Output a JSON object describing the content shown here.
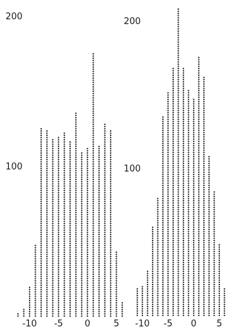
{
  "chart_data": [
    {
      "type": "bar",
      "title": "",
      "xlabel": "",
      "ylabel": "",
      "ylim": [
        0,
        200
      ],
      "y_ticks": [
        {
          "value": 100,
          "label": "100"
        },
        {
          "value": 200,
          "label": "200"
        }
      ],
      "xlim": [
        -12.5,
        6.5
      ],
      "x_ticks": [
        {
          "value": -10,
          "label": "-10"
        },
        {
          "value": -5,
          "label": "-5"
        },
        {
          "value": 0,
          "label": "0"
        },
        {
          "value": 5,
          "label": "5"
        }
      ],
      "x": [
        -12,
        -11,
        -10,
        -9,
        -8,
        -7,
        -6,
        -5,
        -4,
        -3,
        -2,
        -1,
        0,
        1,
        2,
        3,
        4,
        5,
        6
      ],
      "values": [
        2,
        5,
        20,
        48,
        126,
        124,
        118,
        119,
        122,
        116,
        136,
        109,
        113,
        175,
        114,
        128,
        124,
        44,
        10
      ],
      "grid": false,
      "legend": false
    },
    {
      "type": "bar",
      "title": "",
      "xlabel": "",
      "ylabel": "",
      "ylim": [
        0,
        200
      ],
      "y_ticks": [
        {
          "value": 100,
          "label": "100"
        },
        {
          "value": 200,
          "label": "200"
        }
      ],
      "xlim": [
        -11.5,
        7
      ],
      "x_ticks": [
        {
          "value": -10,
          "label": "-10"
        },
        {
          "value": -5,
          "label": "-5"
        },
        {
          "value": 0,
          "label": "0"
        },
        {
          "value": 5,
          "label": "5"
        }
      ],
      "x": [
        -11,
        -10,
        -9,
        -8,
        -7,
        -6,
        -5,
        -4,
        -3,
        -2,
        -1,
        0,
        1,
        2,
        3,
        4,
        5,
        6
      ],
      "values": [
        18,
        20,
        30,
        60,
        80,
        136,
        152,
        168,
        208,
        168,
        154,
        148,
        176,
        162,
        108,
        84,
        48,
        18
      ],
      "grid": false,
      "legend": false
    }
  ]
}
